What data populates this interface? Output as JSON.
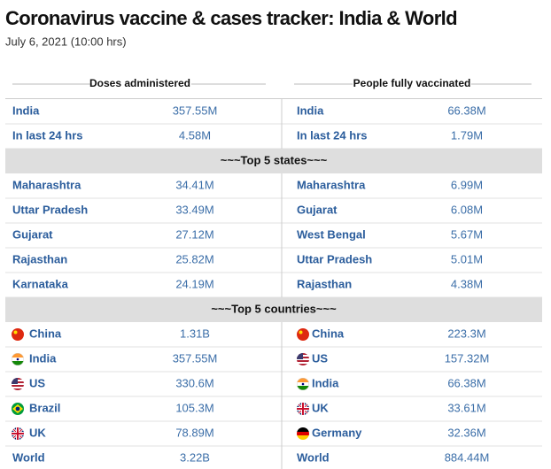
{
  "header": {
    "title": "Coronavirus vaccine & cases tracker: India & World",
    "subtitle": "July 6, 2021 (10:00 hrs)"
  },
  "columns": [
    "Doses administered",
    "People fully vaccinated"
  ],
  "sections": [
    {
      "rows": [
        {
          "left": [
            "India",
            "357.55M"
          ],
          "right": [
            "India",
            "66.38M"
          ]
        },
        {
          "left": [
            "In last 24 hrs",
            "4.58M"
          ],
          "right": [
            "In last 24 hrs",
            "1.79M"
          ]
        }
      ]
    },
    {
      "title": "~~~Top 5 states~~~",
      "rows": [
        {
          "left": [
            "Maharashtra",
            "34.41M"
          ],
          "right": [
            "Maharashtra",
            "6.99M"
          ]
        },
        {
          "left": [
            "Uttar Pradesh",
            "33.49M"
          ],
          "right": [
            "Gujarat",
            "6.08M"
          ]
        },
        {
          "left": [
            "Gujarat",
            "27.12M"
          ],
          "right": [
            "West Bengal",
            "5.67M"
          ]
        },
        {
          "left": [
            "Rajasthan",
            "25.82M"
          ],
          "right": [
            "Uttar Pradesh",
            "5.01M"
          ]
        },
        {
          "left": [
            "Karnataka",
            "24.19M"
          ],
          "right": [
            "Rajasthan",
            "4.38M"
          ]
        }
      ]
    },
    {
      "title": "~~~Top 5 countries~~~",
      "rows": [
        {
          "left": [
            "China",
            "1.31B"
          ],
          "right": [
            "China",
            "223.3M"
          ]
        },
        {
          "left": [
            "India",
            "357.55M"
          ],
          "right": [
            "US",
            "157.32M"
          ]
        },
        {
          "left": [
            "US",
            "330.6M"
          ],
          "right": [
            "India",
            "66.38M"
          ]
        },
        {
          "left": [
            "Brazil",
            "105.3M"
          ],
          "right": [
            "UK",
            "33.61M"
          ]
        },
        {
          "left": [
            "UK",
            "78.89M"
          ],
          "right": [
            "Germany",
            "32.36M"
          ]
        },
        {
          "left": [
            "World",
            "3.22B"
          ],
          "right": [
            "World",
            "884.44M"
          ]
        }
      ]
    }
  ]
}
